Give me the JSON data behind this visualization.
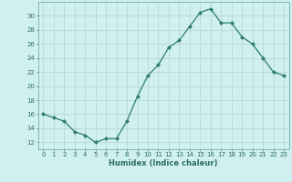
{
  "x": [
    0,
    1,
    2,
    3,
    4,
    5,
    6,
    7,
    8,
    9,
    10,
    11,
    12,
    13,
    14,
    15,
    16,
    17,
    18,
    19,
    20,
    21,
    22,
    23
  ],
  "y": [
    16,
    15.5,
    15,
    13.5,
    13,
    12,
    12.5,
    12.5,
    15,
    18.5,
    21.5,
    23,
    25.5,
    26.5,
    28.5,
    30.5,
    31,
    29,
    29,
    27,
    26,
    24,
    22,
    21.5
  ],
  "line_color": "#2e7d6e",
  "marker_color": "#2e7d6e",
  "bg_color": "#cff0ee",
  "grid_color": "#b8d8d4",
  "xlabel": "Humidex (Indice chaleur)",
  "ylabel_ticks": [
    12,
    14,
    16,
    18,
    20,
    22,
    24,
    26,
    28,
    30
  ],
  "ylim": [
    11,
    32
  ],
  "xlim": [
    -0.5,
    23.5
  ],
  "xticks": [
    0,
    1,
    2,
    3,
    4,
    5,
    6,
    7,
    8,
    9,
    10,
    11,
    12,
    13,
    14,
    15,
    16,
    17,
    18,
    19,
    20,
    21,
    22,
    23
  ],
  "xlabel_fontsize": 6.0,
  "tick_fontsize": 5.0,
  "tick_color": "#2e6e60"
}
